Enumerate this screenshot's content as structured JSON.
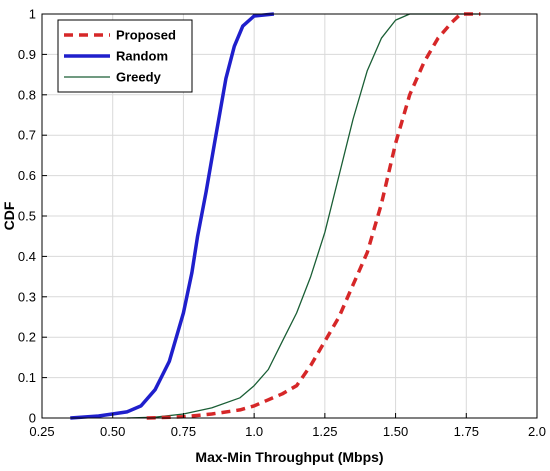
{
  "chart_data": {
    "type": "line",
    "title": "",
    "xlabel": "Max-Min Throughput (Mbps)",
    "ylabel": "CDF",
    "xlim": [
      0.25,
      2.0
    ],
    "ylim": [
      0,
      1
    ],
    "grid": true,
    "legend_position": "top-left",
    "x_tick_labels": [
      "0.25",
      "0.50",
      "0.75",
      "1.0",
      "1.25",
      "1.50",
      "1.75",
      "2.0"
    ],
    "x_ticks": [
      0.25,
      0.5,
      0.75,
      1.0,
      1.25,
      1.5,
      1.75,
      2.0
    ],
    "y_tick_labels": [
      "0",
      "0.1",
      "0.2",
      "0.3",
      "0.4",
      "0.5",
      "0.6",
      "0.7",
      "0.8",
      "0.9",
      "1"
    ],
    "y_ticks": [
      0,
      0.1,
      0.2,
      0.3,
      0.4,
      0.5,
      0.6,
      0.7,
      0.8,
      0.9,
      1.0
    ],
    "series": [
      {
        "name": "Proposed",
        "color": "#d62728",
        "style": "dashed",
        "points": [
          [
            0.62,
            0.0
          ],
          [
            0.75,
            0.003
          ],
          [
            0.85,
            0.01
          ],
          [
            0.95,
            0.02
          ],
          [
            1.0,
            0.03
          ],
          [
            1.05,
            0.045
          ],
          [
            1.1,
            0.06
          ],
          [
            1.15,
            0.08
          ],
          [
            1.2,
            0.13
          ],
          [
            1.25,
            0.19
          ],
          [
            1.3,
            0.25
          ],
          [
            1.35,
            0.33
          ],
          [
            1.4,
            0.41
          ],
          [
            1.45,
            0.53
          ],
          [
            1.5,
            0.68
          ],
          [
            1.55,
            0.8
          ],
          [
            1.6,
            0.88
          ],
          [
            1.65,
            0.94
          ],
          [
            1.7,
            0.98
          ],
          [
            1.73,
            1.0
          ],
          [
            1.8,
            1.0
          ]
        ]
      },
      {
        "name": "Random",
        "color": "#1f1fcc",
        "style": "solid-thick",
        "points": [
          [
            0.35,
            0.0
          ],
          [
            0.45,
            0.005
          ],
          [
            0.55,
            0.015
          ],
          [
            0.6,
            0.03
          ],
          [
            0.65,
            0.07
          ],
          [
            0.7,
            0.14
          ],
          [
            0.75,
            0.26
          ],
          [
            0.78,
            0.36
          ],
          [
            0.8,
            0.45
          ],
          [
            0.83,
            0.56
          ],
          [
            0.86,
            0.68
          ],
          [
            0.88,
            0.76
          ],
          [
            0.9,
            0.84
          ],
          [
            0.93,
            0.92
          ],
          [
            0.96,
            0.97
          ],
          [
            1.0,
            0.995
          ],
          [
            1.07,
            1.0
          ]
        ]
      },
      {
        "name": "Greedy",
        "color": "#1a5e35",
        "style": "solid-thin",
        "points": [
          [
            0.55,
            0.0
          ],
          [
            0.65,
            0.002
          ],
          [
            0.75,
            0.01
          ],
          [
            0.85,
            0.025
          ],
          [
            0.95,
            0.05
          ],
          [
            1.0,
            0.08
          ],
          [
            1.05,
            0.12
          ],
          [
            1.1,
            0.19
          ],
          [
            1.15,
            0.26
          ],
          [
            1.2,
            0.35
          ],
          [
            1.25,
            0.46
          ],
          [
            1.3,
            0.6
          ],
          [
            1.35,
            0.74
          ],
          [
            1.4,
            0.86
          ],
          [
            1.45,
            0.94
          ],
          [
            1.5,
            0.985
          ],
          [
            1.55,
            1.0
          ],
          [
            1.8,
            1.0
          ]
        ]
      }
    ]
  }
}
